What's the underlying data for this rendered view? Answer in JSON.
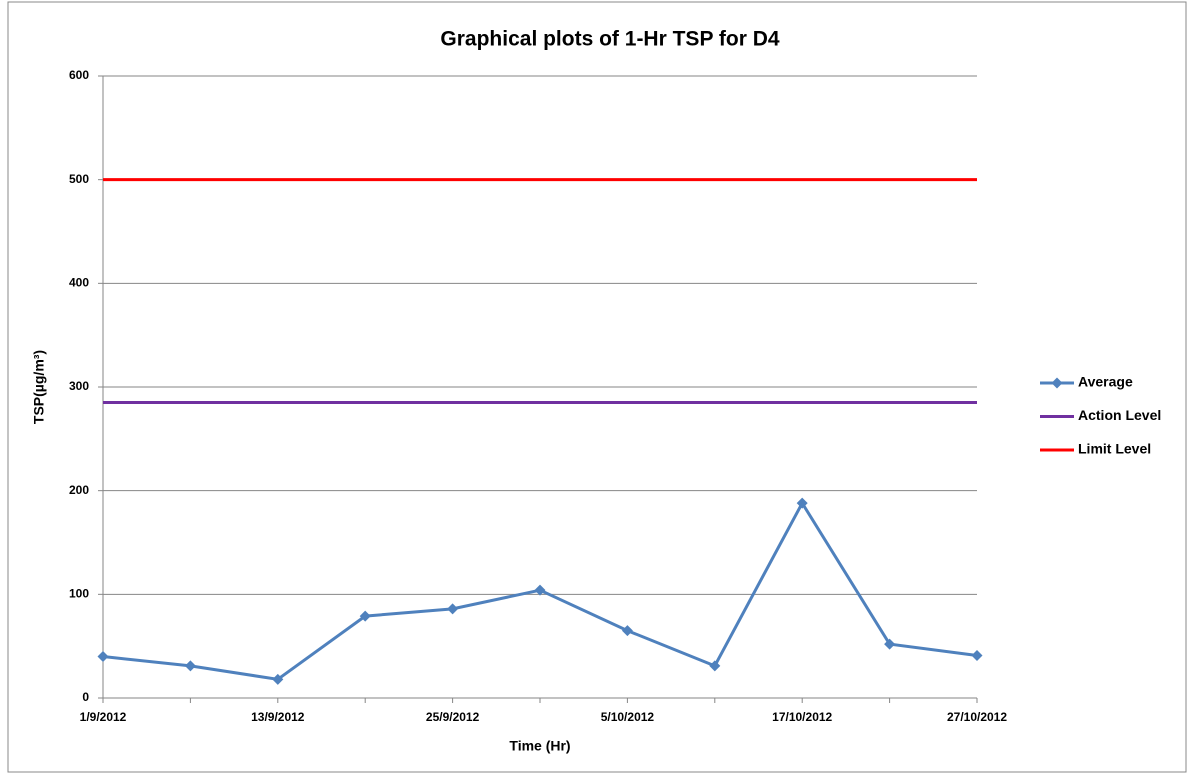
{
  "chart_data": {
    "type": "line",
    "title": "Graphical plots of 1-Hr TSP for D4",
    "x_label": "Time (Hr)",
    "y_label": "TSP(µg/m³)",
    "categories": [
      "1/9/2012",
      null,
      "13/9/2012",
      null,
      "25/9/2012",
      null,
      "5/10/2012",
      null,
      "17/10/2012",
      null,
      "27/10/2012"
    ],
    "series": [
      {
        "name": "Average",
        "color": "#4f81bd",
        "marker": "diamond",
        "values": [
          40,
          31,
          18,
          79,
          86,
          104,
          65,
          31,
          188,
          52,
          41
        ]
      },
      {
        "name": "Action Level",
        "color": "#7030a0",
        "values": [
          285,
          285,
          285,
          285,
          285,
          285,
          285,
          285,
          285,
          285,
          285
        ]
      },
      {
        "name": "Limit Level",
        "color": "#ff0000",
        "values": [
          500,
          500,
          500,
          500,
          500,
          500,
          500,
          500,
          500,
          500,
          500
        ]
      }
    ],
    "ylim": [
      0,
      600
    ],
    "yticks": [
      0,
      100,
      200,
      300,
      400,
      500,
      600
    ],
    "grid": true,
    "legend": "right"
  }
}
